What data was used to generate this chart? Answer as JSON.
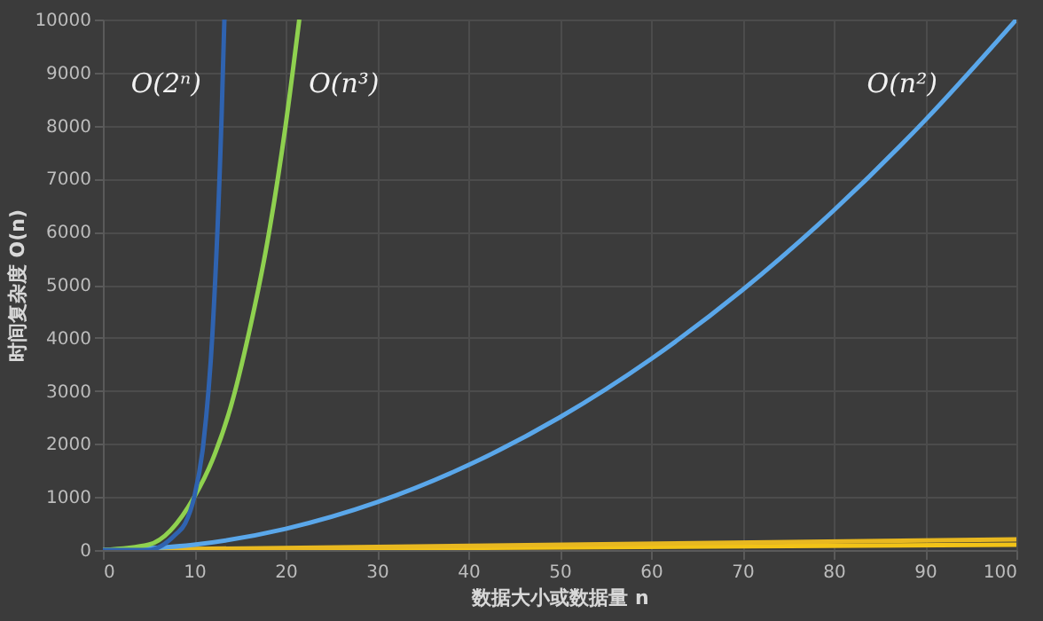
{
  "chart_data": {
    "type": "line",
    "xlabel": "数据大小或数据量 n",
    "ylabel": "时间复杂度 O(n)",
    "xlim": [
      0,
      100
    ],
    "ylim": [
      0,
      10000
    ],
    "xticks": [
      0,
      10,
      20,
      30,
      40,
      50,
      60,
      70,
      80,
      90,
      100
    ],
    "yticks": [
      0,
      1000,
      2000,
      3000,
      4000,
      5000,
      6000,
      7000,
      8000,
      9000,
      10000
    ],
    "grid": true,
    "series": [
      {
        "color": "#f2c317",
        "x": [
          0,
          100
        ],
        "values": [
          0,
          100
        ]
      },
      {
        "color": "#e8b820",
        "x": [
          0,
          100
        ],
        "values": [
          0,
          200
        ]
      },
      {
        "name": "O(n²)",
        "color": "#5aa7ea",
        "x": [
          0,
          10,
          20,
          30,
          40,
          50,
          60,
          70,
          80,
          90,
          100
        ],
        "values": [
          0,
          100,
          400,
          900,
          1600,
          2500,
          3600,
          4900,
          6400,
          8100,
          10000
        ]
      },
      {
        "name": "O(n³)",
        "color": "#8fd14f",
        "x": [
          0,
          5,
          10,
          12,
          14,
          16,
          18,
          20,
          21.5
        ],
        "values": [
          0,
          100,
          1000,
          1700,
          2700,
          4100,
          5800,
          8000,
          10000
        ]
      },
      {
        "name": "O(2ⁿ)",
        "color": "#2f63b0",
        "x": [
          0,
          5,
          8,
          9,
          10,
          11,
          12,
          13,
          13.3
        ],
        "values": [
          0,
          0,
          300,
          500,
          1000,
          2000,
          4100,
          8200,
          10000
        ]
      }
    ]
  }
}
